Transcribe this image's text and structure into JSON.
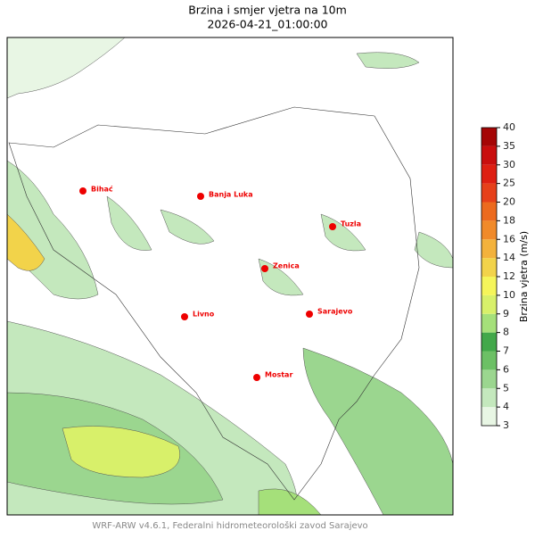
{
  "header": {
    "title": "Brzina i smjer vjetra na 10m",
    "datetime": "2026-04-21_01:00:00"
  },
  "cities": [
    {
      "label": "Bihać"
    },
    {
      "label": "Banja Luka"
    },
    {
      "label": "Tuzla"
    },
    {
      "label": "Zenica"
    },
    {
      "label": "Livno"
    },
    {
      "label": "Sarajevo"
    },
    {
      "label": "Mostar"
    }
  ],
  "colorbar": {
    "label": "Brzina vjetra (m/s)",
    "ticks": [
      3,
      4,
      5,
      6,
      7,
      8,
      9,
      10,
      12,
      14,
      16,
      18,
      20,
      25,
      30,
      35,
      40
    ],
    "colors": [
      "#e8f6e4",
      "#c4e8bd",
      "#9bd68f",
      "#6cc065",
      "#42a84a",
      "#a5e07a",
      "#d8f06a",
      "#f5f55a",
      "#f2d34a",
      "#f3b23c",
      "#f08a2a",
      "#ec6a1e",
      "#e6401a",
      "#de1f12",
      "#c90e0e",
      "#a50606"
    ]
  },
  "footer": "WRF-ARW v4.6.1, Federalni hidrometeorološki zavod Sarajevo"
}
